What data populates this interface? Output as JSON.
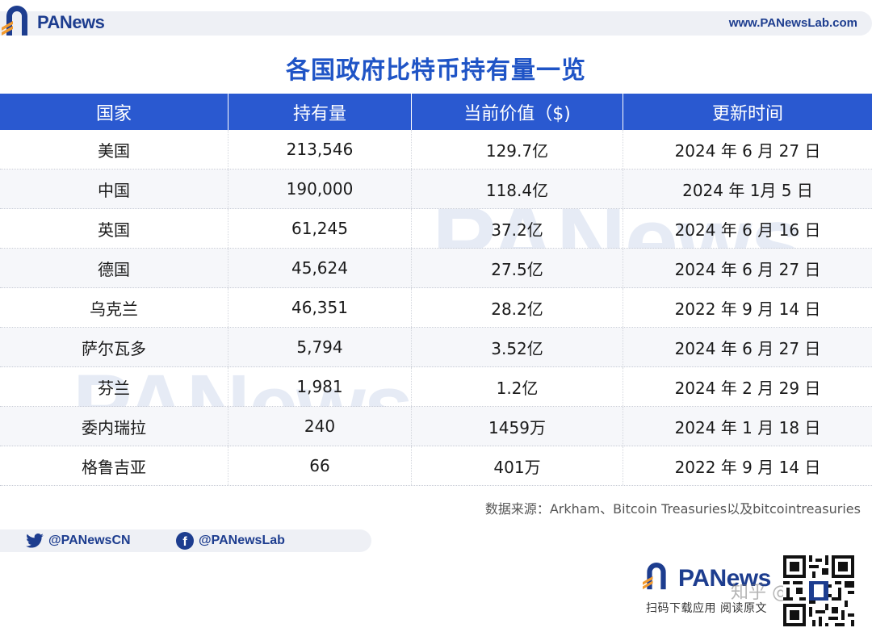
{
  "header": {
    "brand": "PANews",
    "site_url": "www.PANewsLab.com"
  },
  "title": "各国政府比特币持有量一览",
  "table": {
    "columns": [
      "国家",
      "持有量",
      "当前价值（$)",
      "更新时间"
    ],
    "rows": [
      {
        "country": "美国",
        "amount": "213,546",
        "value": "129.7亿",
        "updated": "2024 年 6 月 27 日"
      },
      {
        "country": "中国",
        "amount": "190,000",
        "value": "118.4亿",
        "updated": "2024 年 1月 5 日"
      },
      {
        "country": "英国",
        "amount": "61,245",
        "value": "37.2亿",
        "updated": "2024 年 6 月 16 日"
      },
      {
        "country": "德国",
        "amount": "45,624",
        "value": "27.5亿",
        "updated": "2024 年 6 月 27 日"
      },
      {
        "country": "乌克兰",
        "amount": "46,351",
        "value": "28.2亿",
        "updated": "2022 年 9 月 14 日"
      },
      {
        "country": "萨尔瓦多",
        "amount": "5,794",
        "value": "3.52亿",
        "updated": "2024 年 6 月 27 日"
      },
      {
        "country": "芬兰",
        "amount": "1,981",
        "value": "1.2亿",
        "updated": "2024 年 2 月 29 日"
      },
      {
        "country": "委内瑞拉",
        "amount": "240",
        "value": "1459万",
        "updated": "2024 年 1 月 18 日"
      },
      {
        "country": "格鲁吉亚",
        "amount": "66",
        "value": "401万",
        "updated": "2022 年 9 月 14 日"
      }
    ],
    "source": "数据来源：Arkham、Bitcoin Treasuries以及bitcointreasuries"
  },
  "watermark_text": "PANews",
  "social": {
    "twitter": "@PANewsCN",
    "facebook": "@PANewsLab"
  },
  "footer": {
    "brand": "PANews",
    "tagline": "扫码下载应用  阅读原文",
    "zhihu_watermark": "知乎 @BO夫"
  },
  "colors": {
    "brand_blue": "#1d3d8f",
    "header_blue": "#2a59d0",
    "title_blue": "#1f54c6",
    "accent_orange": "#f29a2e"
  },
  "icons": [
    "logo-mark-icon",
    "twitter-icon",
    "facebook-icon",
    "qr-code-icon"
  ]
}
